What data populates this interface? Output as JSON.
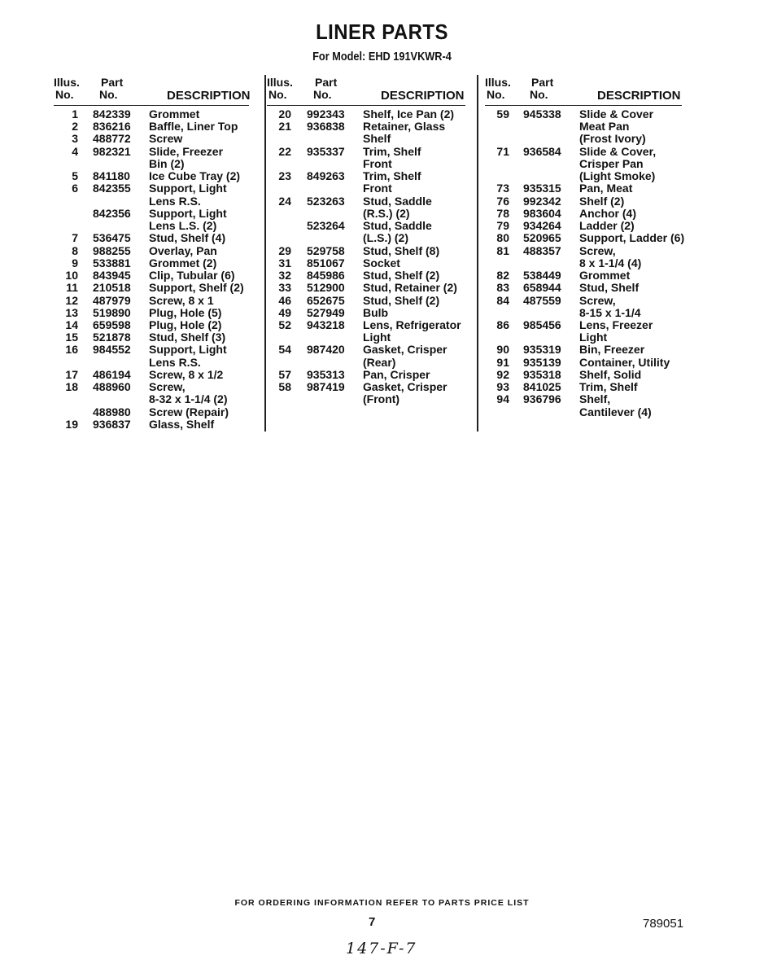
{
  "title": "LINER PARTS",
  "subtitle": "For Model: EHD 191VKWR-4",
  "headers": {
    "illus1": "Illus.",
    "illus2": "No.",
    "part1": "Part",
    "part2": "No.",
    "desc": "DESCRIPTION"
  },
  "columns": [
    [
      {
        "illus": "1",
        "part": "842339",
        "desc": [
          "Grommet"
        ]
      },
      {
        "illus": "2",
        "part": "836216",
        "desc": [
          "Baffle, Liner Top"
        ]
      },
      {
        "illus": "3",
        "part": "488772",
        "desc": [
          "Screw"
        ]
      },
      {
        "illus": "4",
        "part": "982321",
        "desc": [
          "Slide, Freezer",
          "Bin (2)"
        ]
      },
      {
        "illus": "5",
        "part": "841180",
        "desc": [
          "Ice Cube Tray (2)"
        ]
      },
      {
        "illus": "6",
        "part": "842355",
        "desc": [
          "Support, Light",
          "Lens R.S."
        ]
      },
      {
        "illus": "",
        "part": "842356",
        "desc": [
          "Support, Light",
          "Lens L.S. (2)"
        ]
      },
      {
        "illus": "7",
        "part": "536475",
        "desc": [
          "Stud, Shelf (4)"
        ]
      },
      {
        "illus": "8",
        "part": "988255",
        "desc": [
          "Overlay, Pan"
        ]
      },
      {
        "illus": "9",
        "part": "533881",
        "desc": [
          "Grommet (2)"
        ]
      },
      {
        "illus": "10",
        "part": "843945",
        "desc": [
          "Clip, Tubular (6)"
        ]
      },
      {
        "illus": "11",
        "part": "210518",
        "desc": [
          "Support, Shelf (2)"
        ]
      },
      {
        "illus": "12",
        "part": "487979",
        "desc": [
          "Screw, 8 x 1"
        ]
      },
      {
        "illus": "13",
        "part": "519890",
        "desc": [
          "Plug, Hole (5)"
        ]
      },
      {
        "illus": "14",
        "part": "659598",
        "desc": [
          "Plug, Hole (2)"
        ]
      },
      {
        "illus": "15",
        "part": "521878",
        "desc": [
          "Stud, Shelf (3)"
        ]
      },
      {
        "illus": "16",
        "part": "984552",
        "desc": [
          "Support, Light",
          "Lens R.S."
        ]
      },
      {
        "illus": "17",
        "part": "486194",
        "desc": [
          "Screw, 8 x 1/2"
        ]
      },
      {
        "illus": "18",
        "part": "488960",
        "desc": [
          "Screw,",
          "8-32 x 1-1/4 (2)"
        ]
      },
      {
        "illus": "",
        "part": "488980",
        "desc": [
          "Screw (Repair)"
        ]
      },
      {
        "illus": "19",
        "part": "936837",
        "desc": [
          "Glass, Shelf"
        ]
      }
    ],
    [
      {
        "illus": "20",
        "part": "992343",
        "desc": [
          "Shelf, Ice Pan (2)"
        ]
      },
      {
        "illus": "21",
        "part": "936838",
        "desc": [
          "Retainer, Glass",
          "Shelf"
        ]
      },
      {
        "illus": "22",
        "part": "935337",
        "desc": [
          "Trim, Shelf",
          "Front"
        ]
      },
      {
        "illus": "23",
        "part": "849263",
        "desc": [
          "Trim, Shelf",
          "Front"
        ]
      },
      {
        "illus": "24",
        "part": "523263",
        "desc": [
          "Stud, Saddle",
          "(R.S.) (2)"
        ]
      },
      {
        "illus": "",
        "part": "523264",
        "desc": [
          "Stud, Saddle",
          "(L.S.) (2)"
        ]
      },
      {
        "illus": "29",
        "part": "529758",
        "desc": [
          "Stud, Shelf (8)"
        ]
      },
      {
        "illus": "31",
        "part": "851067",
        "desc": [
          "Socket"
        ]
      },
      {
        "illus": "32",
        "part": "845986",
        "desc": [
          "Stud, Shelf (2)"
        ]
      },
      {
        "illus": "33",
        "part": "512900",
        "desc": [
          "Stud, Retainer (2)"
        ]
      },
      {
        "illus": "46",
        "part": "652675",
        "desc": [
          "Stud, Shelf (2)"
        ]
      },
      {
        "illus": "49",
        "part": "527949",
        "desc": [
          "Bulb"
        ]
      },
      {
        "illus": "52",
        "part": "943218",
        "desc": [
          "Lens, Refrigerator",
          "Light"
        ]
      },
      {
        "illus": "54",
        "part": "987420",
        "desc": [
          "Gasket, Crisper",
          "(Rear)"
        ]
      },
      {
        "illus": "57",
        "part": "935313",
        "desc": [
          "Pan, Crisper"
        ]
      },
      {
        "illus": "58",
        "part": "987419",
        "desc": [
          "Gasket, Crisper",
          "(Front)"
        ]
      }
    ],
    [
      {
        "illus": "59",
        "part": "945338",
        "desc": [
          "Slide & Cover",
          "Meat Pan",
          "(Frost Ivory)"
        ]
      },
      {
        "illus": "71",
        "part": "936584",
        "desc": [
          "Slide & Cover,",
          "Crisper Pan",
          "(Light Smoke)"
        ]
      },
      {
        "illus": "73",
        "part": "935315",
        "desc": [
          "Pan, Meat"
        ]
      },
      {
        "illus": "76",
        "part": "992342",
        "desc": [
          "Shelf (2)"
        ]
      },
      {
        "illus": "78",
        "part": "983604",
        "desc": [
          "Anchor (4)"
        ]
      },
      {
        "illus": "79",
        "part": "934264",
        "desc": [
          "Ladder (2)"
        ]
      },
      {
        "illus": "80",
        "part": "520965",
        "desc": [
          "Support, Ladder (6)"
        ]
      },
      {
        "illus": "81",
        "part": "488357",
        "desc": [
          "Screw,",
          "8 x 1-1/4 (4)"
        ]
      },
      {
        "illus": "82",
        "part": "538449",
        "desc": [
          "Grommet"
        ]
      },
      {
        "illus": "83",
        "part": "658944",
        "desc": [
          "Stud, Shelf"
        ]
      },
      {
        "illus": "84",
        "part": "487559",
        "desc": [
          "Screw,",
          "8-15 x 1-1/4"
        ]
      },
      {
        "illus": "86",
        "part": "985456",
        "desc": [
          "Lens, Freezer",
          "Light"
        ]
      },
      {
        "illus": "90",
        "part": "935319",
        "desc": [
          "Bin, Freezer"
        ]
      },
      {
        "illus": "91",
        "part": "935139",
        "desc": [
          "Container, Utility"
        ]
      },
      {
        "illus": "92",
        "part": "935318",
        "desc": [
          "Shelf, Solid"
        ]
      },
      {
        "illus": "93",
        "part": "841025",
        "desc": [
          "Trim, Shelf"
        ]
      },
      {
        "illus": "94",
        "part": "936796",
        "desc": [
          "Shelf,",
          "Cantilever (4)"
        ]
      }
    ]
  ],
  "footer": {
    "ordering_note": "FOR ORDERING INFORMATION REFER TO PARTS PRICE LIST",
    "page_number": "7",
    "document_number": "789051",
    "handwritten_note": "147-F-7"
  }
}
